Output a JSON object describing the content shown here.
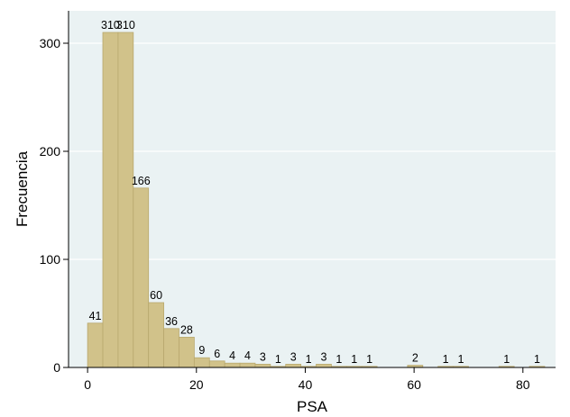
{
  "chart_data": {
    "type": "bar",
    "xlabel": "PSA",
    "ylabel": "Frecuencia",
    "xlim": [
      -3.5,
      86
    ],
    "ylim": [
      0,
      330
    ],
    "x_ticks": [
      0,
      20,
      40,
      60,
      80
    ],
    "y_ticks": [
      0,
      100,
      200,
      300
    ],
    "grid": true,
    "bar_color": "#d1c28a",
    "bar_edge_color": "#b8a86e",
    "plot_background": "#eaf2f3",
    "bin_width": 2.8,
    "bins": [
      {
        "start": 0.0,
        "value": 41
      },
      {
        "start": 2.8,
        "value": 310
      },
      {
        "start": 5.6,
        "value": 310
      },
      {
        "start": 8.4,
        "value": 166
      },
      {
        "start": 11.2,
        "value": 60
      },
      {
        "start": 14.0,
        "value": 36
      },
      {
        "start": 16.8,
        "value": 28
      },
      {
        "start": 19.6,
        "value": 9
      },
      {
        "start": 22.4,
        "value": 6
      },
      {
        "start": 25.2,
        "value": 4
      },
      {
        "start": 28.0,
        "value": 4
      },
      {
        "start": 30.8,
        "value": 3
      },
      {
        "start": 33.6,
        "value": 1
      },
      {
        "start": 36.4,
        "value": 3
      },
      {
        "start": 39.2,
        "value": 1
      },
      {
        "start": 42.0,
        "value": 3
      },
      {
        "start": 44.8,
        "value": 1
      },
      {
        "start": 47.6,
        "value": 1
      },
      {
        "start": 50.4,
        "value": 1
      },
      {
        "start": 58.8,
        "value": 2
      },
      {
        "start": 64.4,
        "value": 1
      },
      {
        "start": 67.2,
        "value": 1
      },
      {
        "start": 75.6,
        "value": 1
      },
      {
        "start": 81.2,
        "value": 1
      }
    ]
  }
}
